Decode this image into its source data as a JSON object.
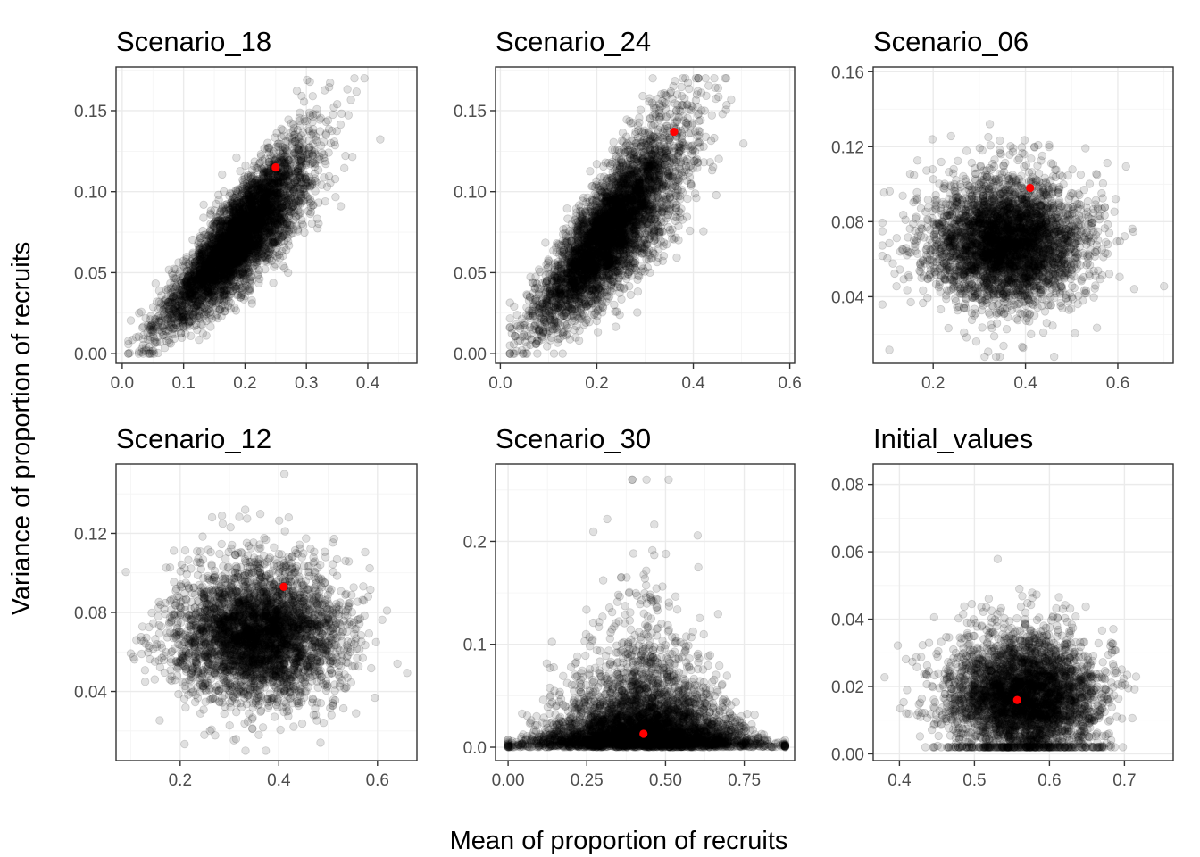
{
  "x_axis_title": "Mean of proportion of recruits",
  "y_axis_title": "Variance of proportion of recruits",
  "colors": {
    "points": "#000000",
    "highlight": "#ff0000",
    "panel_border": "#333333",
    "grid": "#ebebeb",
    "tick_text": "#4d4d4d"
  },
  "chart_data": [
    {
      "type": "scatter",
      "title": "Scenario_18",
      "xlim": [
        -0.01,
        0.48
      ],
      "ylim": [
        -0.006,
        0.177
      ],
      "x_ticks": [
        0.0,
        0.1,
        0.2,
        0.3,
        0.4
      ],
      "x_tick_labels": [
        "0.0",
        "0.1",
        "0.2",
        "0.3",
        "0.4"
      ],
      "y_ticks": [
        0.0,
        0.05,
        0.1,
        0.15
      ],
      "y_tick_labels": [
        "0.00",
        "0.05",
        "0.10",
        "0.15"
      ],
      "cloud": {
        "shape": "correlated",
        "n": 4500,
        "x_center": 0.19,
        "x_sd": 0.06,
        "y_intercept": -0.005,
        "y_slope": 0.4,
        "y_spread": 0.016,
        "x_min": 0.01,
        "x_max": 0.46,
        "y_min": 0.0,
        "y_max": 0.17
      },
      "highlight_point": {
        "x": 0.25,
        "y": 0.115
      }
    },
    {
      "type": "scatter",
      "title": "Scenario_24",
      "xlim": [
        -0.01,
        0.61
      ],
      "ylim": [
        -0.006,
        0.177
      ],
      "x_ticks": [
        0.0,
        0.2,
        0.4,
        0.6
      ],
      "x_tick_labels": [
        "0.0",
        "0.2",
        "0.4",
        "0.6"
      ],
      "y_ticks": [
        0.0,
        0.05,
        0.1,
        0.15
      ],
      "y_tick_labels": [
        "0.00",
        "0.05",
        "0.10",
        "0.15"
      ],
      "cloud": {
        "shape": "correlated",
        "n": 4500,
        "x_center": 0.23,
        "x_sd": 0.075,
        "y_intercept": 0.0,
        "y_slope": 0.33,
        "y_spread": 0.018,
        "x_min": 0.02,
        "x_max": 0.59,
        "y_min": 0.0,
        "y_max": 0.17
      },
      "highlight_point": {
        "x": 0.36,
        "y": 0.137
      }
    },
    {
      "type": "scatter",
      "title": "Scenario_06",
      "xlim": [
        0.07,
        0.72
      ],
      "ylim": [
        0.0045,
        0.1625
      ],
      "x_ticks": [
        0.2,
        0.4,
        0.6
      ],
      "x_tick_labels": [
        "0.2",
        "0.4",
        "0.6"
      ],
      "y_ticks": [
        0.04,
        0.08,
        0.12,
        0.16
      ],
      "y_tick_labels": [
        "0.04",
        "0.08",
        "0.12",
        "0.16"
      ],
      "cloud": {
        "shape": "blob",
        "n": 4000,
        "x_center": 0.36,
        "x_sd": 0.085,
        "y_center": 0.068,
        "y_sd": 0.016,
        "x_min": 0.09,
        "x_max": 0.7,
        "y_min": 0.008,
        "y_max": 0.156
      },
      "highlight_point": {
        "x": 0.41,
        "y": 0.098
      }
    },
    {
      "type": "scatter",
      "title": "Scenario_12",
      "xlim": [
        0.07,
        0.68
      ],
      "ylim": [
        0.005,
        0.155
      ],
      "x_ticks": [
        0.2,
        0.4,
        0.6
      ],
      "x_tick_labels": [
        "0.2",
        "0.4",
        "0.6"
      ],
      "y_ticks": [
        0.04,
        0.08,
        0.12
      ],
      "y_tick_labels": [
        "0.04",
        "0.08",
        "0.12"
      ],
      "cloud": {
        "shape": "blob",
        "n": 4000,
        "x_center": 0.36,
        "x_sd": 0.085,
        "y_center": 0.068,
        "y_sd": 0.016,
        "x_min": 0.09,
        "x_max": 0.66,
        "y_min": 0.01,
        "y_max": 0.15
      },
      "highlight_point": {
        "x": 0.41,
        "y": 0.093
      }
    },
    {
      "type": "scatter",
      "title": "Scenario_30",
      "xlim": [
        -0.04,
        0.91
      ],
      "ylim": [
        -0.013,
        0.275
      ],
      "x_ticks": [
        0.0,
        0.25,
        0.5,
        0.75
      ],
      "x_tick_labels": [
        "0.00",
        "0.25",
        "0.50",
        "0.75"
      ],
      "y_ticks": [
        0.0,
        0.1,
        0.2
      ],
      "y_tick_labels": [
        "0.0",
        "0.1",
        "0.2"
      ],
      "cloud": {
        "shape": "triangle",
        "n": 4500,
        "x_center": 0.43,
        "x_sd": 0.16,
        "y_scale": 0.03,
        "x_min": 0.0,
        "x_max": 0.88,
        "y_min": 0.0,
        "y_max": 0.26
      },
      "highlight_point": {
        "x": 0.43,
        "y": 0.013
      }
    },
    {
      "type": "scatter",
      "title": "Initial_values",
      "xlim": [
        0.365,
        0.765
      ],
      "ylim": [
        -0.002,
        0.086
      ],
      "x_ticks": [
        0.4,
        0.5,
        0.6,
        0.7
      ],
      "x_tick_labels": [
        "0.4",
        "0.5",
        "0.6",
        "0.7"
      ],
      "y_ticks": [
        0.0,
        0.02,
        0.04,
        0.06,
        0.08
      ],
      "y_tick_labels": [
        "0.00",
        "0.02",
        "0.04",
        "0.06",
        "0.08"
      ],
      "cloud": {
        "shape": "blob",
        "n": 4000,
        "x_center": 0.565,
        "x_sd": 0.052,
        "y_center": 0.016,
        "y_sd": 0.009,
        "x_min": 0.38,
        "x_max": 0.745,
        "y_min": 0.002,
        "y_max": 0.082
      },
      "highlight_point": {
        "x": 0.557,
        "y": 0.016
      }
    }
  ]
}
